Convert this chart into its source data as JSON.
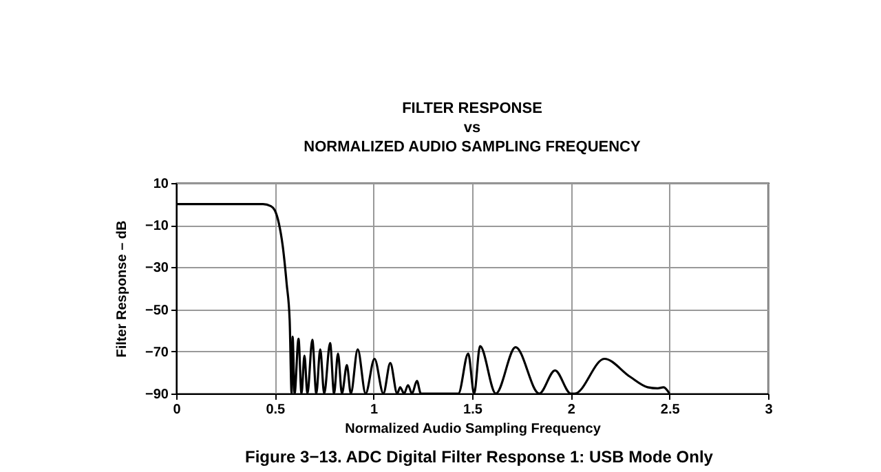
{
  "chart_data": {
    "type": "line",
    "title": "FILTER RESPONSE\nvs\nNORMALIZED AUDIO SAMPLING FREQUENCY",
    "xlabel": "Normalized Audio Sampling Frequency",
    "ylabel": "Filter Response – dB",
    "annotations": [
      "Figure 3−13.  ADC Digital Filter Response 1: USB Mode Only"
    ],
    "xlim": [
      0,
      3
    ],
    "xticks": [
      0,
      0.5,
      1,
      1.5,
      2,
      2.5,
      3
    ],
    "ylim": [
      -90,
      10
    ],
    "yticks": [
      10,
      -10,
      -30,
      -50,
      -70,
      -90
    ],
    "grid": true,
    "marker": "none",
    "line_style": "solid",
    "series": [
      {
        "color": "#000000",
        "x": [
          0,
          0.3,
          0.44,
          0.48,
          0.5,
          0.52,
          0.54,
          0.56,
          0.575,
          0.585,
          0.59,
          0.6,
          0.62,
          0.635,
          0.65,
          0.665,
          0.69,
          0.71,
          0.73,
          0.75,
          0.78,
          0.8,
          0.82,
          0.84,
          0.865,
          0.885,
          0.92,
          0.96,
          1.005,
          1.05,
          1.085,
          1.12,
          1.135,
          1.155,
          1.175,
          1.195,
          1.22,
          1.24,
          1.43,
          1.48,
          1.51,
          1.54,
          1.62,
          1.72,
          1.84,
          1.92,
          2.0,
          2.02,
          2.17,
          2.3,
          2.39,
          2.44,
          2.47,
          2.5
        ],
        "values": [
          0,
          0,
          0,
          -1,
          -3,
          -9,
          -20,
          -38,
          -55,
          -90,
          -63,
          -90,
          -64,
          -90,
          -72,
          -90,
          -64.5,
          -90,
          -69,
          -90,
          -66,
          -90,
          -71,
          -90,
          -76.5,
          -90,
          -69,
          -90,
          -73.5,
          -90,
          -75.5,
          -90,
          -87,
          -90,
          -86,
          -90,
          -84,
          -90,
          -90,
          -71,
          -90,
          -67.5,
          -90,
          -68,
          -90,
          -79,
          -90,
          -90,
          -73.5,
          -82,
          -87,
          -87.5,
          -87,
          -90
        ]
      }
    ]
  }
}
